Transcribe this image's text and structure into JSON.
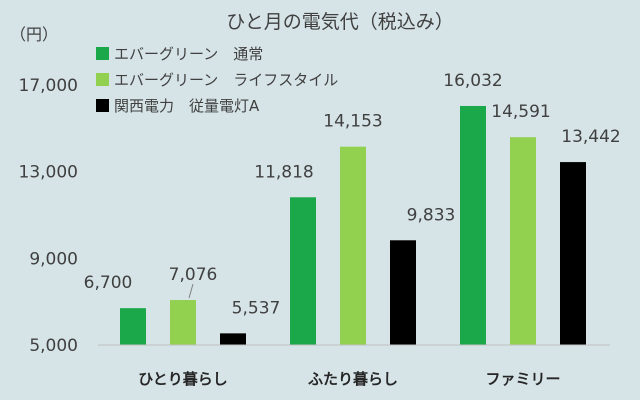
{
  "chart_data": {
    "type": "bar",
    "title": "ひと月の電気代（税込み）",
    "unit_label": "（円）",
    "categories": [
      "ひとり暮らし",
      "ふたり暮らし",
      "ファミリー"
    ],
    "series": [
      {
        "name": "エバーグリーン　通常",
        "color": "#1aa84a",
        "values": [
          6700,
          11818,
          16032
        ],
        "labels": [
          "6,700",
          "11,818",
          "16,032"
        ]
      },
      {
        "name": "エバーグリーン　ライフスタイル",
        "color": "#92d050",
        "values": [
          7076,
          14153,
          14591
        ],
        "labels": [
          "7,076",
          "14,153",
          "14,591"
        ]
      },
      {
        "name": "関西電力　従量電灯A",
        "color": "#000000",
        "values": [
          5537,
          9833,
          13442
        ],
        "labels": [
          "5,537",
          "9,833",
          "13,442"
        ]
      }
    ],
    "y_ticks": [
      5000,
      9000,
      13000,
      17000
    ],
    "y_tick_labels": [
      "5,000",
      "9,000",
      "13,000",
      "17,000"
    ],
    "ylim": [
      5000,
      17000
    ],
    "grid": false,
    "legend_position": "top-left"
  }
}
